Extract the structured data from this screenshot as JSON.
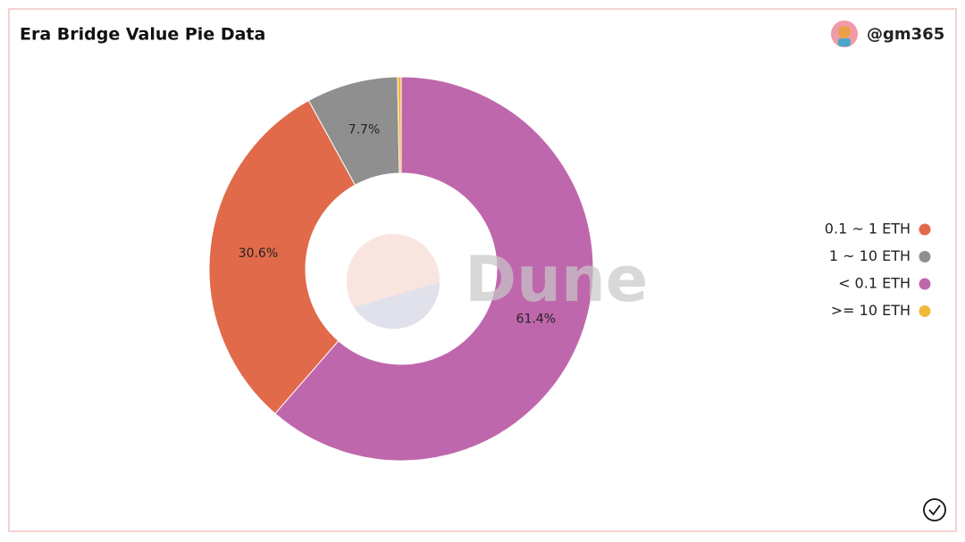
{
  "header": {
    "title": "Era Bridge Value Pie Data",
    "user": "@gm365"
  },
  "watermark": "Dune",
  "chart_data": {
    "type": "pie",
    "categories": [
      "< 0.1 ETH",
      "0.1 ~ 1 ETH",
      "1 ~ 10 ETH",
      ">= 10 ETH"
    ],
    "values": [
      61.4,
      30.6,
      7.7,
      0.3
    ],
    "value_labels": [
      "61.4%",
      "30.6%",
      "7.7%",
      null
    ],
    "colors": [
      "#bf67ad",
      "#e06a4a",
      "#8f8f8f",
      "#f0b93a"
    ],
    "legend": "right"
  }
}
